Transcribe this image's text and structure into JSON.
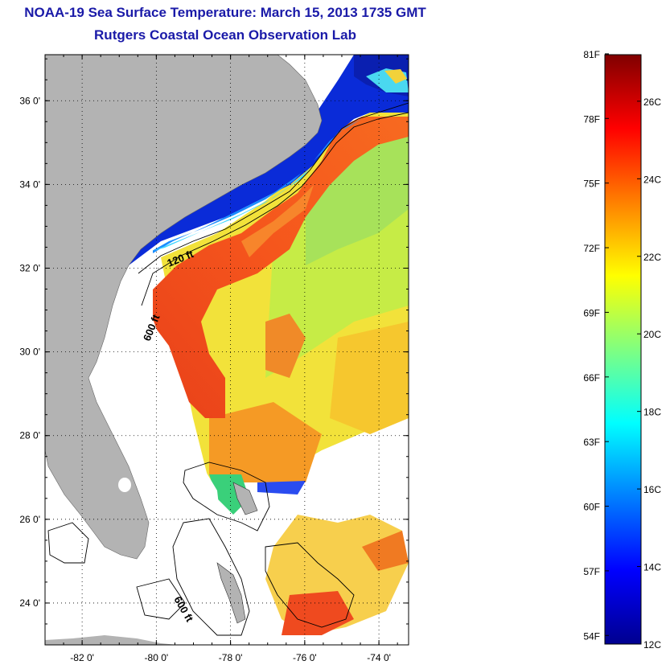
{
  "title_line1": "NOAA-19 Sea Surface Temperature:  March 15, 2013 1735 GMT",
  "title_line2": "Rutgers Coastal Ocean Observation Lab",
  "map": {
    "lon_range": [
      -83,
      -73.2
    ],
    "lat_range": [
      23.0,
      37.1
    ],
    "x_ticks": [
      {
        "value": -82,
        "label": "-82 0'"
      },
      {
        "value": -80,
        "label": "-80 0'"
      },
      {
        "value": -78,
        "label": "-78 0'"
      },
      {
        "value": -76,
        "label": "-76 0'"
      },
      {
        "value": -74,
        "label": "-74 0'"
      }
    ],
    "y_ticks": [
      {
        "value": 36,
        "label": "36 0'"
      },
      {
        "value": 34,
        "label": "34 0'"
      },
      {
        "value": 32,
        "label": "32 0'"
      },
      {
        "value": 30,
        "label": "30 0'"
      },
      {
        "value": 28,
        "label": "28 0'"
      },
      {
        "value": 26,
        "label": "26 0'"
      },
      {
        "value": 24,
        "label": "24 0'"
      }
    ],
    "grid": "dotted",
    "land_color": "#b3b3b3",
    "contour_labels": [
      {
        "text": "120 ft"
      },
      {
        "text": "600 ft"
      },
      {
        "text": "600 ft"
      }
    ]
  },
  "colorbar": {
    "colormap": "jet",
    "range_c": [
      12,
      27.2
    ],
    "fahrenheit_labels": [
      "81F",
      "78F",
      "75F",
      "72F",
      "69F",
      "66F",
      "63F",
      "60F",
      "57F",
      "54F"
    ],
    "fahrenheit_values": [
      81,
      78,
      75,
      72,
      69,
      66,
      63,
      60,
      57,
      54
    ],
    "celsius_labels": [
      "26C",
      "24C",
      "22C",
      "20C",
      "18C",
      "16C",
      "14C",
      "12C"
    ],
    "celsius_values": [
      26,
      24,
      22,
      20,
      18,
      16,
      14,
      12
    ]
  }
}
